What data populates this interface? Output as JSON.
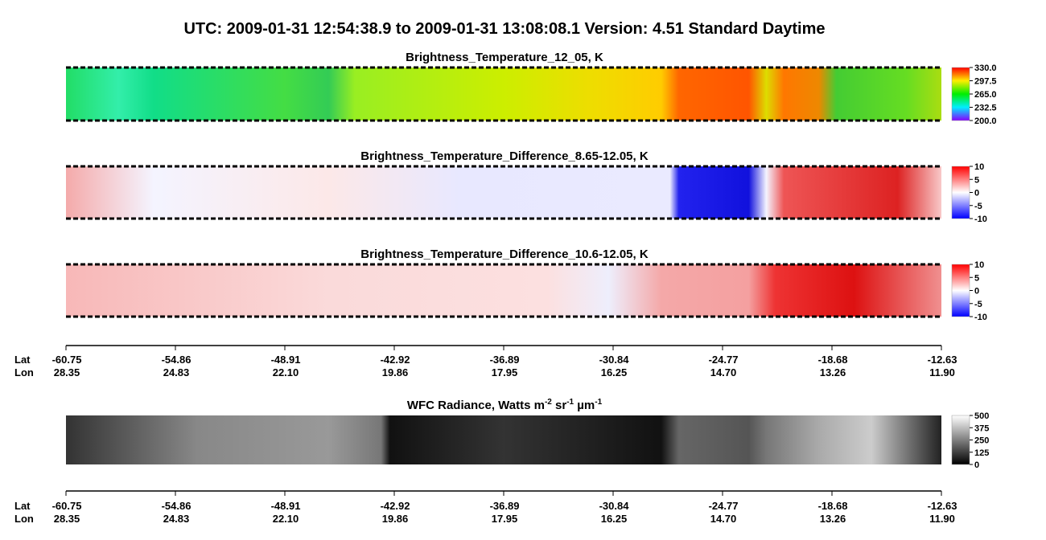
{
  "title": "UTC:  2009-01-31   12:54:38.9  to  2009-01-31   13:08:08.1    Version: 4.51  Standard Daytime",
  "panels": [
    {
      "title": "Brightness_Temperature_12_05, K",
      "colorbar_ticks": [
        "330.0",
        "297.5",
        "265.0",
        "232.5",
        "200.0"
      ]
    },
    {
      "title": "Brightness_Temperature_Difference_8.65-12.05, K",
      "colorbar_ticks": [
        "10",
        "5",
        "0",
        "-5",
        "-10"
      ]
    },
    {
      "title": "Brightness_Temperature_Difference_10.6-12.05, K",
      "colorbar_ticks": [
        "10",
        "5",
        "0",
        "-5",
        "-10"
      ]
    }
  ],
  "wfc": {
    "title_segments": [
      "WFC Radiance, Watts m",
      "-2",
      " sr",
      "-1",
      " µm",
      "-1"
    ],
    "colorbar_ticks": [
      "500",
      "375",
      "250",
      "125",
      "0"
    ]
  },
  "axes": [
    {
      "row_labels": [
        "Lat",
        "Lon"
      ],
      "lat": [
        "-60.75",
        "-54.86",
        "-48.91",
        "-42.92",
        "-36.89",
        "-30.84",
        "-24.77",
        "-18.68",
        "-12.63"
      ],
      "lon": [
        "28.35",
        "24.83",
        "22.10",
        "19.86",
        "17.95",
        "16.25",
        "14.70",
        "13.26",
        "11.90"
      ]
    },
    {
      "row_labels": [
        "Lat",
        "Lon"
      ],
      "lat": [
        "-60.75",
        "-54.86",
        "-48.91",
        "-42.92",
        "-36.89",
        "-30.84",
        "-24.77",
        "-18.68",
        "-12.63"
      ],
      "lon": [
        "28.35",
        "24.83",
        "22.10",
        "19.86",
        "17.95",
        "16.25",
        "14.70",
        "13.26",
        "11.90"
      ]
    }
  ]
}
